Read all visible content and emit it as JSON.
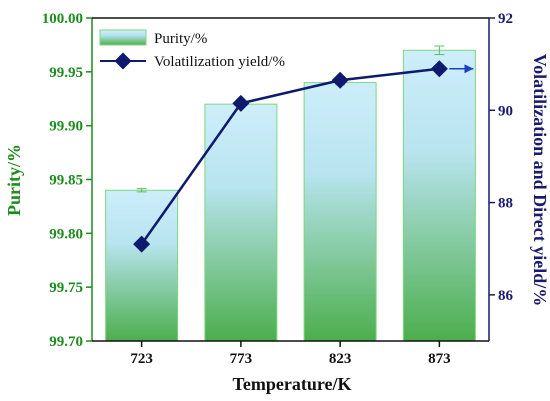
{
  "chart_data": {
    "type": "bar+line",
    "categories": [
      "723",
      "773",
      "823",
      "873"
    ],
    "xlabel": "Temperature/K",
    "ylabel_left": "Purity/%",
    "ylabel_right": "Volatilization and Direct yield/%",
    "ylim_left": [
      99.7,
      100.0
    ],
    "ylim_right": [
      85.0,
      92.0
    ],
    "yticks_left": [
      "99.70",
      "99.75",
      "99.80",
      "99.85",
      "99.90",
      "99.95",
      "100.00"
    ],
    "yticks_right": [
      "86",
      "88",
      "90",
      "92"
    ],
    "legend_position": "top-left",
    "series": [
      {
        "name": "Purity/%",
        "kind": "bar",
        "axis": "left",
        "values": [
          99.84,
          99.92,
          99.94,
          99.97
        ],
        "error": [
          0.0015,
          0.0,
          0.002,
          0.004
        ]
      },
      {
        "name": "Volatilization yield/%",
        "kind": "line",
        "axis": "right",
        "values": [
          87.1,
          90.15,
          90.65,
          90.9
        ]
      }
    ],
    "colors": {
      "left_axis": "#1e8c1e",
      "right_axis": "#1a1a6e",
      "bar_top": "#cdeefb",
      "bar_bottom": "#4cae4c",
      "bar_edge": "#7ed67e",
      "line": "#0d1a6e"
    }
  }
}
